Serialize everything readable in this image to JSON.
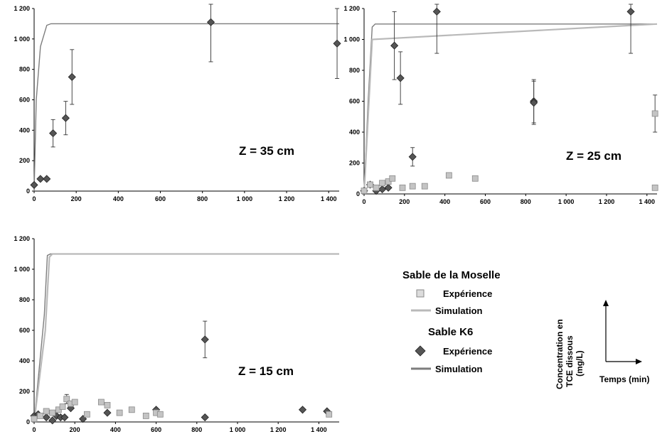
{
  "chart_data": [
    {
      "type": "scatter",
      "annotation": "Z = 35 cm",
      "xlim": [
        0,
        1450
      ],
      "ylim": [
        0,
        1200
      ],
      "x_ticks": [
        "0",
        "200",
        "400",
        "600",
        "800",
        "1 000",
        "1 200",
        "1 400"
      ],
      "y_ticks": [
        "0",
        "200",
        "400",
        "600",
        "800",
        "1 000",
        "1 200"
      ],
      "grid": false,
      "series": [
        {
          "series_key": "k6_sim",
          "kind": "line",
          "x": [
            0,
            10,
            30,
            60,
            80,
            1450
          ],
          "y": [
            0,
            600,
            950,
            1090,
            1100,
            1100
          ]
        },
        {
          "series_key": "k6_exp",
          "kind": "diamond",
          "x": [
            0,
            30,
            60,
            90,
            150,
            180,
            840,
            1440
          ],
          "y": [
            40,
            80,
            80,
            380,
            480,
            750,
            1110,
            970
          ],
          "err": [
            0,
            0,
            0,
            90,
            110,
            180,
            260,
            230
          ]
        }
      ]
    },
    {
      "type": "scatter",
      "annotation": "Z = 25 cm",
      "xlim": [
        0,
        1450
      ],
      "ylim": [
        0,
        1200
      ],
      "x_ticks": [
        "0",
        "200",
        "400",
        "600",
        "800",
        "1 000",
        "1 200",
        "1 400"
      ],
      "y_ticks": [
        "0",
        "200",
        "400",
        "600",
        "800",
        "1 000",
        "1 200"
      ],
      "grid": false,
      "series": [
        {
          "series_key": "k6_sim",
          "kind": "line",
          "x": [
            0,
            20,
            40,
            55,
            1450
          ],
          "y": [
            0,
            600,
            1080,
            1100,
            1100
          ]
        },
        {
          "series_key": "mos_sim",
          "kind": "line",
          "x": [
            0,
            20,
            40,
            1450
          ],
          "y": [
            0,
            500,
            1000,
            1100
          ]
        },
        {
          "series_key": "k6_exp",
          "kind": "diamond",
          "x": [
            0,
            30,
            60,
            90,
            120,
            150,
            180,
            240,
            360,
            840,
            840,
            1320
          ],
          "y": [
            20,
            60,
            20,
            30,
            40,
            960,
            750,
            240,
            1180,
            600,
            590,
            1180
          ],
          "err": [
            0,
            0,
            0,
            0,
            0,
            220,
            170,
            60,
            270,
            140,
            140,
            270
          ]
        },
        {
          "series_key": "mos_exp",
          "kind": "square",
          "x": [
            0,
            30,
            60,
            90,
            120,
            140,
            190,
            240,
            300,
            420,
            550,
            1440,
            1440
          ],
          "y": [
            20,
            60,
            40,
            70,
            80,
            100,
            40,
            50,
            50,
            120,
            100,
            520,
            40
          ],
          "err": [
            0,
            0,
            0,
            0,
            0,
            0,
            0,
            0,
            0,
            0,
            0,
            120,
            0
          ]
        }
      ]
    },
    {
      "type": "scatter",
      "annotation": "Z = 15 cm",
      "xlim": [
        0,
        1500
      ],
      "ylim": [
        0,
        1200
      ],
      "x_ticks": [
        "0",
        "200",
        "400",
        "600",
        "800",
        "1 000",
        "1 200",
        "1 400"
      ],
      "y_ticks": [
        "0",
        "200",
        "400",
        "600",
        "800",
        "1 000",
        "1 200"
      ],
      "grid": false,
      "series": [
        {
          "series_key": "k6_sim",
          "kind": "line",
          "x": [
            0,
            50,
            65,
            80,
            1500
          ],
          "y": [
            0,
            700,
            1090,
            1100,
            1100
          ]
        },
        {
          "series_key": "mos_sim",
          "kind": "line",
          "x": [
            0,
            55,
            75,
            90,
            1500
          ],
          "y": [
            0,
            600,
            1080,
            1100,
            1100
          ]
        },
        {
          "series_key": "k6_exp",
          "kind": "diamond",
          "x": [
            0,
            20,
            60,
            90,
            110,
            130,
            150,
            180,
            240,
            360,
            600,
            840,
            840,
            1320,
            1440
          ],
          "y": [
            40,
            50,
            30,
            10,
            40,
            30,
            30,
            90,
            20,
            60,
            80,
            540,
            30,
            80,
            70
          ],
          "err": [
            0,
            0,
            0,
            0,
            0,
            0,
            0,
            0,
            0,
            0,
            0,
            120,
            0,
            0,
            0
          ]
        },
        {
          "series_key": "mos_exp",
          "kind": "square",
          "x": [
            0,
            30,
            60,
            90,
            120,
            140,
            160,
            180,
            200,
            260,
            330,
            360,
            420,
            480,
            550,
            600,
            620,
            1450
          ],
          "y": [
            20,
            40,
            70,
            60,
            80,
            100,
            150,
            120,
            130,
            50,
            130,
            110,
            60,
            80,
            40,
            60,
            50,
            50
          ],
          "err": [
            0,
            0,
            0,
            0,
            0,
            0,
            30,
            0,
            0,
            0,
            0,
            0,
            0,
            0,
            0,
            0,
            0,
            0
          ]
        }
      ]
    }
  ],
  "legend": {
    "group1_title": "Sable de la Moselle",
    "group1_exp": "Expérience",
    "group1_sim": "Simulation",
    "group2_title": "Sable K6",
    "group2_exp": "Expérience",
    "group2_sim": "Simulation"
  },
  "axis_key": {
    "y_line1": "Concentration en",
    "y_line2": "TCE dissous",
    "y_line3": "(mg/L)",
    "x_label": "Temps (min)"
  },
  "colors": {
    "k6_sim": "#7d7d7d",
    "mos_sim": "#b9b9b9",
    "k6_marker": "#555555",
    "mos_marker": "#c4c4c4",
    "axis": "#000000"
  }
}
